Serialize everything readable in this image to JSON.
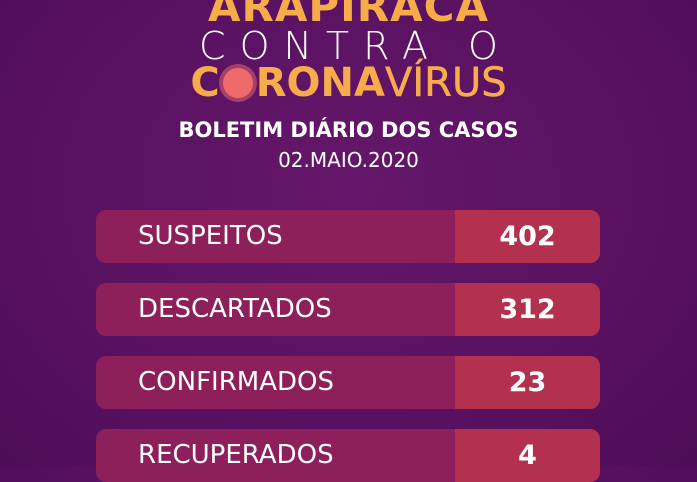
{
  "header": {
    "line1": "ARAPIRACA",
    "line2": "CONTRA O",
    "line3_a": "C",
    "line3_b": "RONA",
    "line3_c": "VÍRUS",
    "subtitle": "BOLETIM DIÁRIO DOS CASOS",
    "date": "02.MAIO.2020"
  },
  "rows": [
    {
      "label": "SUSPEITOS",
      "value": "402"
    },
    {
      "label": "DESCARTADOS",
      "value": "312"
    },
    {
      "label": "CONFIRMADOS",
      "value": "23"
    },
    {
      "label": "RECUPERADOS",
      "value": "4"
    }
  ],
  "colors": {
    "background": "#5b1262",
    "accent": "#f7ac4c",
    "row_label_bg": "#8d1f5b",
    "row_value_bg": "#b4304f"
  }
}
